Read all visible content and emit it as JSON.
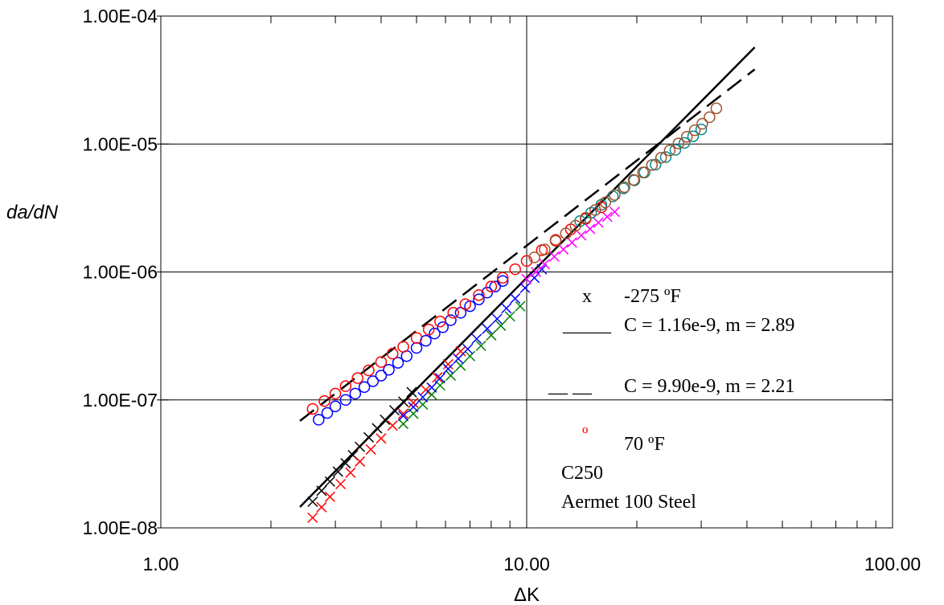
{
  "chart_data": {
    "type": "scatter",
    "title": "",
    "xlabel": "ΔK",
    "ylabel": "da/dN",
    "xscale": "log",
    "yscale": "log",
    "xlim": [
      1,
      100
    ],
    "ylim": [
      1e-08,
      0.0001
    ],
    "grid": "major",
    "x_ticks": [
      1,
      10,
      100
    ],
    "x_tick_labels": [
      "1.00",
      "10.00",
      "100.00"
    ],
    "y_ticks": [
      1e-08,
      1e-07,
      1e-06,
      1e-05,
      0.0001
    ],
    "y_tick_labels": [
      "1.00E-08",
      "1.00E-07",
      "1.00E-06",
      "1.00E-05",
      "1.00E-04"
    ],
    "legend_position": "bottom-right",
    "legend": {
      "entry1_marker": "x",
      "entry1_label": "-275 ºF",
      "entry2_marker": "_____",
      "entry2_label": "C = 1.16e-9, m = 2.89",
      "entry3_marker": "__ __",
      "entry3_label": "C = 9.90e-9, m = 2.21",
      "entry4_marker": "º",
      "entry4_label": "70 ºF",
      "note1": "C250",
      "note2": "Aermet 100 Steel"
    },
    "fit_lines": [
      {
        "style": "solid",
        "C": 1.16e-09,
        "m": 2.89,
        "x_range": [
          2.4,
          42
        ]
      },
      {
        "style": "dashed",
        "C": 9.9e-09,
        "m": 2.21,
        "x_range": [
          2.4,
          42
        ]
      }
    ],
    "series": [
      {
        "marker": "x",
        "color": "#000000",
        "x": [
          2.6,
          2.75,
          2.9,
          3.05,
          3.2,
          3.35,
          3.5,
          3.7,
          3.9,
          4.1,
          4.35,
          4.6,
          4.85
        ],
        "y": [
          1.6e-08,
          1.95e-08,
          2.3e-08,
          2.75e-08,
          3.2e-08,
          3.7e-08,
          4.3e-08,
          5.1e-08,
          6e-08,
          7e-08,
          8.3e-08,
          9.7e-08,
          1.15e-07
        ]
      },
      {
        "marker": "x",
        "color": "#ff0000",
        "x": [
          2.6,
          2.75,
          2.9,
          3.1,
          3.3,
          3.5,
          3.75,
          4.0,
          4.3,
          4.6,
          4.9,
          5.3,
          5.7,
          6.1,
          6.6
        ],
        "y": [
          1.2e-08,
          1.45e-08,
          1.75e-08,
          2.2e-08,
          2.7e-08,
          3.3e-08,
          4.1e-08,
          5e-08,
          6.3e-08,
          7.8e-08,
          9.5e-08,
          1.2e-07,
          1.5e-07,
          1.9e-07,
          2.4e-07
        ]
      },
      {
        "marker": "x",
        "color": "#008000",
        "x": [
          4.6,
          4.9,
          5.2,
          5.5,
          5.8,
          6.2,
          6.6,
          7.0,
          7.5,
          8.0,
          8.5,
          9.0,
          9.6
        ],
        "y": [
          6.5e-08,
          7.8e-08,
          9.2e-08,
          1.1e-07,
          1.3e-07,
          1.55e-07,
          1.85e-07,
          2.2e-07,
          2.65e-07,
          3.2e-07,
          3.8e-07,
          4.5e-07,
          5.4e-07
        ]
      },
      {
        "marker": "x",
        "color": "#0000ff",
        "x": [
          4.6,
          4.9,
          5.2,
          5.5,
          5.8,
          6.1,
          6.5,
          6.9,
          7.3,
          7.8,
          8.3,
          8.8,
          9.3,
          9.9,
          10.5,
          11.0
        ],
        "y": [
          7.5e-08,
          8.8e-08,
          1.05e-07,
          1.25e-07,
          1.48e-07,
          1.75e-07,
          2.1e-07,
          2.5e-07,
          3e-07,
          3.6e-07,
          4.3e-07,
          5.2e-07,
          6.2e-07,
          7.5e-07,
          9e-07,
          1.05e-06
        ]
      },
      {
        "marker": "x",
        "color": "#ff00ff",
        "x": [
          10.0,
          10.6,
          11.2,
          11.9,
          12.6,
          13.3,
          14.1,
          14.9,
          15.7,
          16.6,
          17.4
        ],
        "y": [
          8.8e-07,
          1e-06,
          1.15e-06,
          1.32e-06,
          1.5e-06,
          1.7e-06,
          1.93e-06,
          2.17e-06,
          2.43e-06,
          2.7e-06,
          2.95e-06
        ]
      },
      {
        "marker": "o",
        "color": "#0000ff",
        "x": [
          2.7,
          2.85,
          3.0,
          3.2,
          3.4,
          3.6,
          3.8,
          4.0,
          4.2,
          4.45,
          4.7,
          5.0,
          5.3,
          5.6,
          5.9,
          6.2,
          6.6,
          7.0,
          7.4,
          7.8,
          8.2,
          8.6
        ],
        "y": [
          7e-08,
          7.9e-08,
          8.9e-08,
          1e-07,
          1.12e-07,
          1.26e-07,
          1.4e-07,
          1.55e-07,
          1.72e-07,
          1.95e-07,
          2.2e-07,
          2.55e-07,
          2.9e-07,
          3.3e-07,
          3.7e-07,
          4.2e-07,
          4.8e-07,
          5.4e-07,
          6.1e-07,
          6.9e-07,
          7.7e-07,
          8.5e-07
        ]
      },
      {
        "marker": "o",
        "color": "#ff0000",
        "x": [
          2.6,
          2.8,
          3.0,
          3.2,
          3.45,
          3.7,
          4.0,
          4.3,
          4.6,
          5.0,
          5.4,
          5.8,
          6.3,
          6.8,
          7.4,
          8.0,
          8.6,
          9.3,
          10.0,
          11.0,
          12.0,
          13.2,
          14.5,
          16.0
        ],
        "y": [
          8.5e-08,
          9.8e-08,
          1.12e-07,
          1.28e-07,
          1.48e-07,
          1.7e-07,
          1.98e-07,
          2.3e-07,
          2.6e-07,
          3.05e-07,
          3.55e-07,
          4.1e-07,
          4.8e-07,
          5.6e-07,
          6.6e-07,
          7.7e-07,
          9e-07,
          1.05e-06,
          1.22e-06,
          1.48e-06,
          1.78e-06,
          2.15e-06,
          2.6e-06,
          3.2e-06
        ]
      },
      {
        "marker": "o",
        "color": "#008b8b",
        "x": [
          14.0,
          15.0,
          16.0,
          17.2,
          18.4,
          19.7,
          21.0,
          22.5,
          24.0,
          25.5,
          27.0,
          28.5,
          30.0
        ],
        "y": [
          2.5e-06,
          2.9e-06,
          3.35e-06,
          3.9e-06,
          4.5e-06,
          5.2e-06,
          6e-06,
          6.9e-06,
          7.9e-06,
          9e-06,
          1.02e-05,
          1.15e-05,
          1.3e-05
        ]
      },
      {
        "marker": "o",
        "color": "#a0522d",
        "x": [
          10.5,
          11.2,
          12.0,
          12.8,
          13.6,
          14.5,
          15.4,
          16.4,
          17.4,
          18.5,
          19.6,
          20.8,
          22.0,
          23.3,
          24.6,
          26.0,
          27.4,
          28.8,
          30.2,
          31.6,
          33.0
        ],
        "y": [
          1.3e-06,
          1.5e-06,
          1.75e-06,
          2e-06,
          2.3e-06,
          2.65e-06,
          3.05e-06,
          3.5e-06,
          4e-06,
          4.6e-06,
          5.25e-06,
          6e-06,
          6.85e-06,
          7.8e-06,
          8.9e-06,
          1.01e-05,
          1.14e-05,
          1.28e-05,
          1.44e-05,
          1.62e-05,
          1.9e-05
        ]
      }
    ]
  }
}
